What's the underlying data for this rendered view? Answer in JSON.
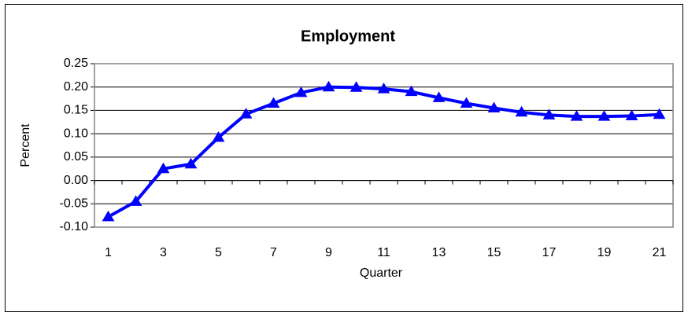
{
  "chart_data": {
    "type": "line",
    "title": "Employment",
    "x_label": "Quarter",
    "y_label": "Percent",
    "categories": [
      "1",
      null,
      "3",
      null,
      "5",
      null,
      "7",
      null,
      "9",
      null,
      "11",
      null,
      "13",
      null,
      "15",
      null,
      "17",
      null,
      "19",
      null,
      "21"
    ],
    "series": [
      {
        "name": "Employment",
        "color": "#0000ff",
        "values": [
          -0.078,
          -0.045,
          0.025,
          0.035,
          0.092,
          0.142,
          0.165,
          0.188,
          0.2,
          0.199,
          0.196,
          0.19,
          0.177,
          0.165,
          0.155,
          0.146,
          0.14,
          0.137,
          0.137,
          0.138,
          0.141
        ]
      }
    ],
    "ylim": [
      -0.1,
      0.25
    ],
    "yticks": [
      {
        "value": -0.1,
        "label": "-0.10"
      },
      -0.05,
      {
        "value": 0,
        "label": "0.00"
      },
      0.05,
      {
        "value": 0.1,
        "label": "0.10"
      },
      0.15,
      {
        "value": 0.2,
        "label": "0.20"
      },
      0.25
    ],
    "grid": true
  }
}
